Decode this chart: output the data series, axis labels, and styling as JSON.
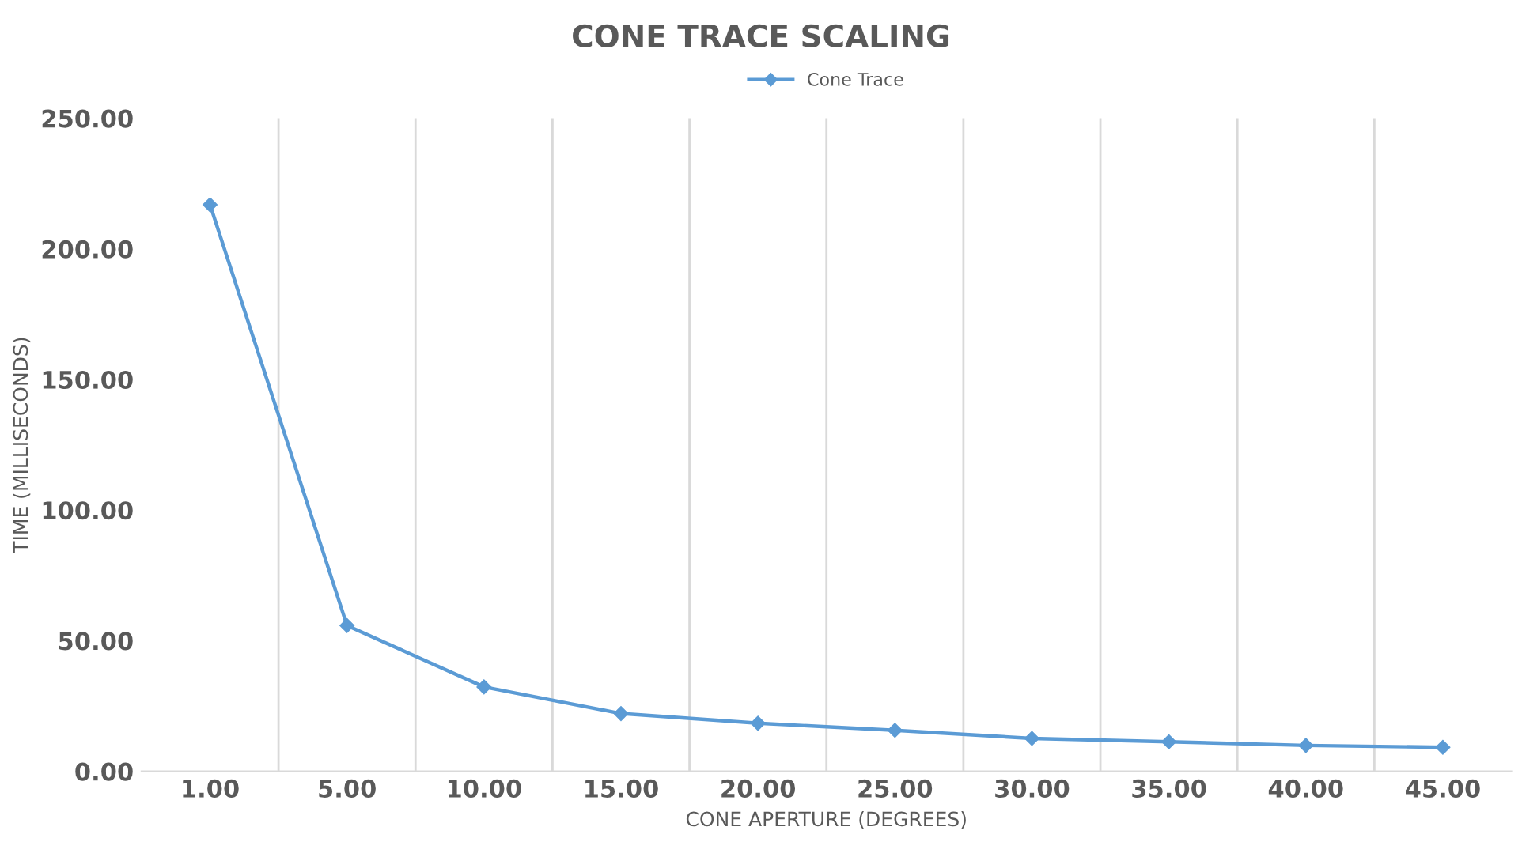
{
  "chart_data": {
    "type": "line",
    "title": "CONE TRACE SCALING",
    "xlabel": "CONE APERTURE (DEGREES)",
    "ylabel": "TIME (MILLISECONDS)",
    "categories": [
      "1.00",
      "5.00",
      "10.00",
      "15.00",
      "20.00",
      "25.00",
      "30.00",
      "35.00",
      "40.00",
      "45.00"
    ],
    "series": [
      {
        "name": "Cone Trace",
        "color": "#5b9bd5",
        "values": [
          216.9,
          55.8,
          32.3,
          22.1,
          18.4,
          15.7,
          12.6,
          11.3,
          9.9,
          9.2
        ]
      }
    ],
    "ylim": [
      0,
      250
    ],
    "yticks": [
      {
        "value": 0,
        "label": "0.00"
      },
      {
        "value": 50,
        "label": "50.00"
      },
      {
        "value": 100,
        "label": "100.00"
      },
      {
        "value": 150,
        "label": "150.00"
      },
      {
        "value": 200,
        "label": "200.00"
      },
      {
        "value": 250,
        "label": "250.00"
      }
    ],
    "grid": "x",
    "legend": "top",
    "marker": "diamond",
    "line_style": "solid"
  }
}
